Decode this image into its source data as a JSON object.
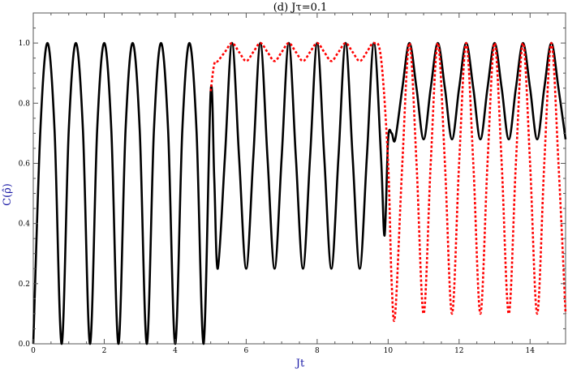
{
  "chart_data": {
    "type": "line",
    "title": "(d) Jτ=0.1",
    "xlabel": "Jt",
    "ylabel": "C(ρ̂)",
    "xlim": [
      0,
      15
    ],
    "ylim": [
      0,
      1.1
    ],
    "x_ticks": [
      0,
      2,
      4,
      6,
      8,
      10,
      12,
      14
    ],
    "x_tick_labels": [
      "0",
      "2",
      "4",
      "6",
      "8",
      "10",
      "12",
      "14"
    ],
    "y_ticks": [
      0.0,
      0.2,
      0.4,
      0.6,
      0.8,
      1.0
    ],
    "y_tick_labels": [
      "0.0",
      "0.2",
      "0.4",
      "0.6",
      "0.8",
      "1.0"
    ],
    "grid": false,
    "series": [
      {
        "style": "solid",
        "color": "#000000",
        "x": [
          0,
          0.2,
          0.4,
          0.6,
          0.8,
          1.0,
          1.2,
          1.4,
          1.6,
          1.8,
          2.0,
          2.2,
          2.4,
          2.6,
          2.8,
          3.0,
          3.2,
          3.4,
          3.6,
          3.8,
          4.0,
          4.2,
          4.4,
          4.6,
          4.8,
          5.0,
          5.1,
          5.2,
          5.4,
          5.6,
          5.8,
          6.0,
          6.2,
          6.4,
          6.6,
          6.8,
          7.0,
          7.2,
          7.4,
          7.6,
          7.8,
          8.0,
          8.2,
          8.4,
          8.6,
          8.8,
          9.0,
          9.2,
          9.4,
          9.6,
          9.8,
          9.9,
          10.0,
          10.1,
          10.2,
          10.4,
          10.6,
          10.8,
          11.0,
          11.2,
          11.4,
          11.6,
          11.8,
          12.0,
          12.2,
          12.4,
          12.6,
          12.8,
          13.0,
          13.2,
          13.4,
          13.6,
          13.8,
          14.0,
          14.2,
          14.4,
          14.6,
          14.8,
          15.0
        ],
        "y": [
          0.0,
          0.71,
          1.0,
          0.71,
          0.0,
          0.71,
          1.0,
          0.71,
          0.0,
          0.71,
          1.0,
          0.71,
          0.0,
          0.71,
          1.0,
          0.71,
          0.0,
          0.71,
          1.0,
          0.71,
          0.0,
          0.71,
          1.0,
          0.71,
          0.0,
          0.84,
          0.55,
          0.25,
          0.62,
          1.0,
          0.62,
          0.25,
          0.62,
          1.0,
          0.62,
          0.25,
          0.62,
          1.0,
          0.62,
          0.25,
          0.62,
          1.0,
          0.62,
          0.25,
          0.62,
          1.0,
          0.62,
          0.25,
          0.62,
          1.0,
          0.62,
          0.36,
          0.68,
          0.7,
          0.68,
          0.85,
          1.0,
          0.85,
          0.68,
          0.85,
          1.0,
          0.85,
          0.68,
          0.85,
          1.0,
          0.85,
          0.68,
          0.85,
          1.0,
          0.85,
          0.68,
          0.85,
          1.0,
          0.85,
          0.68,
          0.85,
          1.0,
          0.85,
          0.68
        ]
      },
      {
        "style": "dotted",
        "color": "#ff0000",
        "x": [
          5.0,
          5.1,
          5.2,
          5.4,
          5.6,
          5.8,
          6.0,
          6.2,
          6.4,
          6.6,
          6.8,
          7.0,
          7.2,
          7.4,
          7.6,
          7.8,
          8.0,
          8.2,
          8.4,
          8.6,
          8.8,
          9.0,
          9.2,
          9.4,
          9.6,
          9.8,
          10.0,
          10.1,
          10.2,
          10.4,
          10.6,
          10.8,
          11.0,
          11.2,
          11.4,
          11.6,
          11.8,
          12.0,
          12.2,
          12.4,
          12.6,
          12.8,
          13.0,
          13.2,
          13.4,
          13.6,
          13.8,
          14.0,
          14.2,
          14.4,
          14.6,
          14.8,
          15.0
        ],
        "y": [
          0.84,
          0.93,
          0.94,
          0.97,
          1.0,
          0.97,
          0.94,
          0.97,
          1.0,
          0.97,
          0.94,
          0.97,
          1.0,
          0.97,
          0.94,
          0.97,
          1.0,
          0.97,
          0.94,
          0.97,
          1.0,
          0.97,
          0.94,
          0.97,
          1.0,
          0.95,
          0.6,
          0.2,
          0.1,
          0.6,
          1.0,
          0.6,
          0.1,
          0.6,
          1.0,
          0.6,
          0.1,
          0.6,
          1.0,
          0.6,
          0.1,
          0.6,
          1.0,
          0.6,
          0.1,
          0.6,
          1.0,
          0.6,
          0.1,
          0.6,
          1.0,
          0.6,
          0.1
        ]
      }
    ]
  }
}
